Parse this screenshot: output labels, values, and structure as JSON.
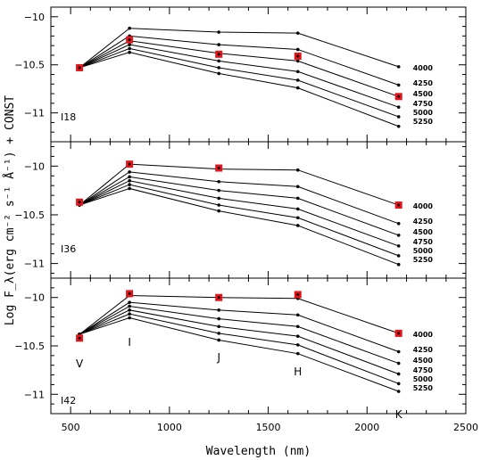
{
  "chart_data": {
    "type": "line",
    "xlabel": "Wavelength (nm)",
    "ylabel": "Log F_λ(erg cm⁻² s⁻¹ Å⁻¹) + CONST",
    "xlim": [
      400,
      2500
    ],
    "x_ticks": [
      500,
      1000,
      1500,
      2000,
      2500
    ],
    "x_tick_labels": [
      "500",
      "1000",
      "1500",
      "2000",
      "2500"
    ],
    "grid": false,
    "bands": [
      {
        "name": "V",
        "x": 545
      },
      {
        "name": "I",
        "x": 798
      },
      {
        "name": "J",
        "x": 1250
      },
      {
        "name": "H",
        "x": 1650
      },
      {
        "name": "K",
        "x": 2160
      }
    ],
    "x": [
      545,
      798,
      1250,
      1650,
      2160
    ],
    "panels": [
      {
        "label": "I18",
        "ylim": [
          -11.3,
          -9.9
        ],
        "y_ticks": [
          -10,
          -10.5,
          -11
        ],
        "y_tick_labels": [
          "−10",
          "−10.5",
          "−11"
        ],
        "series": [
          {
            "name": "4000",
            "values": [
              -10.53,
              -10.12,
              -10.16,
              -10.17,
              -10.52
            ]
          },
          {
            "name": "4250",
            "values": [
              -10.53,
              -10.2,
              -10.29,
              -10.34,
              -10.71
            ]
          },
          {
            "name": "4500",
            "values": [
              -10.53,
              -10.25,
              -10.38,
              -10.46,
              -10.83
            ]
          },
          {
            "name": "4750",
            "values": [
              -10.53,
              -10.29,
              -10.46,
              -10.57,
              -10.94
            ]
          },
          {
            "name": "5000",
            "values": [
              -10.53,
              -10.33,
              -10.53,
              -10.66,
              -11.04
            ]
          },
          {
            "name": "5250",
            "values": [
              -10.53,
              -10.37,
              -10.59,
              -10.74,
              -11.14
            ]
          }
        ],
        "observed": [
          -10.53,
          -10.24,
          -10.39,
          -10.41,
          -10.83
        ]
      },
      {
        "label": "I36",
        "ylim": [
          -11.15,
          -9.75
        ],
        "y_ticks": [
          -10,
          -10.5,
          -11
        ],
        "y_tick_labels": [
          "−10",
          "−10.5",
          "−11"
        ],
        "series": [
          {
            "name": "4000",
            "values": [
              -10.4,
              -9.98,
              -10.03,
              -10.04,
              -10.4
            ]
          },
          {
            "name": "4250",
            "values": [
              -10.4,
              -10.06,
              -10.16,
              -10.21,
              -10.59
            ]
          },
          {
            "name": "4500",
            "values": [
              -10.4,
              -10.11,
              -10.25,
              -10.33,
              -10.71
            ]
          },
          {
            "name": "4750",
            "values": [
              -10.4,
              -10.15,
              -10.33,
              -10.44,
              -10.82
            ]
          },
          {
            "name": "5000",
            "values": [
              -10.4,
              -10.19,
              -10.4,
              -10.53,
              -10.92
            ]
          },
          {
            "name": "5250",
            "values": [
              -10.4,
              -10.23,
              -10.46,
              -10.61,
              -11.01
            ]
          }
        ],
        "observed": [
          -10.37,
          -9.98,
          -10.02,
          null,
          -10.4
        ]
      },
      {
        "label": "I42",
        "ylim": [
          -11.2,
          -9.8
        ],
        "y_ticks": [
          -10,
          -10.5,
          -11
        ],
        "y_tick_labels": [
          "−10",
          "−10.5",
          "−11"
        ],
        "series": [
          {
            "name": "4000",
            "values": [
              -10.38,
              -9.98,
              -10.0,
              -10.01,
              -10.37
            ]
          },
          {
            "name": "4250",
            "values": [
              -10.38,
              -10.05,
              -10.13,
              -10.18,
              -10.56
            ]
          },
          {
            "name": "4500",
            "values": [
              -10.38,
              -10.09,
              -10.22,
              -10.3,
              -10.68
            ]
          },
          {
            "name": "4750",
            "values": [
              -10.38,
              -10.13,
              -10.3,
              -10.4,
              -10.79
            ]
          },
          {
            "name": "5000",
            "values": [
              -10.38,
              -10.17,
              -10.37,
              -10.49,
              -10.89
            ]
          },
          {
            "name": "5250",
            "values": [
              -10.38,
              -10.21,
              -10.44,
              -10.58,
              -10.97
            ]
          }
        ],
        "observed": [
          -10.42,
          -9.96,
          -10.0,
          -9.97,
          -10.37
        ]
      }
    ],
    "colors": {
      "model": "#000000",
      "observed": "#e8141b",
      "observed_center": "#000000"
    }
  }
}
